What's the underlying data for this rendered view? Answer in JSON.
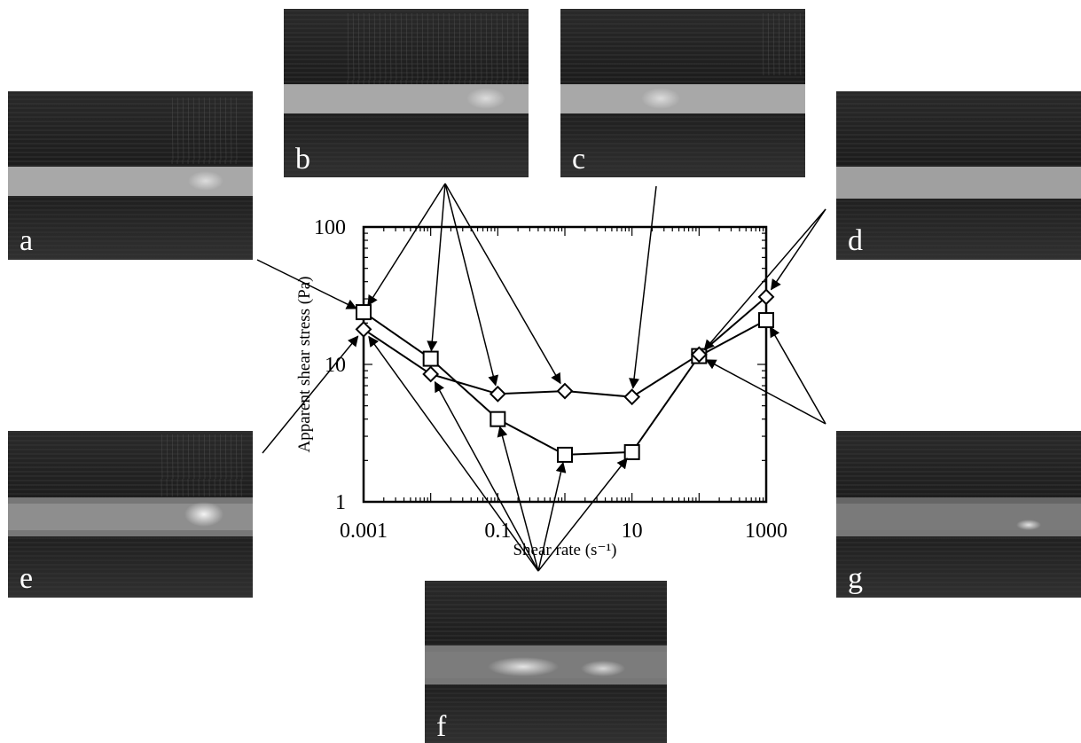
{
  "photos": [
    {
      "id": "a",
      "label": "a"
    },
    {
      "id": "b",
      "label": "b"
    },
    {
      "id": "c",
      "label": "c"
    },
    {
      "id": "d",
      "label": "d"
    },
    {
      "id": "e",
      "label": "e"
    },
    {
      "id": "f",
      "label": "f"
    },
    {
      "id": "g",
      "label": "g"
    }
  ],
  "chart_data": {
    "type": "scatter",
    "xlabel": "Shear rate (s⁻¹)",
    "ylabel": "Apparent shear stress (Pa)",
    "xscale": "log",
    "yscale": "log",
    "xlim": [
      0.001,
      1000
    ],
    "ylim": [
      1,
      100
    ],
    "xticks": [
      "0.001",
      "0.1",
      "10",
      "1000"
    ],
    "yticks": [
      "1",
      "10",
      "100"
    ],
    "series": [
      {
        "marker": "square",
        "x": [
          0.001,
          0.01,
          0.1,
          1,
          10,
          100,
          1000
        ],
        "y": [
          24,
          11,
          4.0,
          2.2,
          2.3,
          11.5,
          21
        ]
      },
      {
        "marker": "diamond",
        "x": [
          0.001,
          0.01,
          0.1,
          1,
          10,
          100,
          1000
        ],
        "y": [
          18,
          8.5,
          6.1,
          6.4,
          5.8,
          11.8,
          31
        ]
      }
    ]
  }
}
